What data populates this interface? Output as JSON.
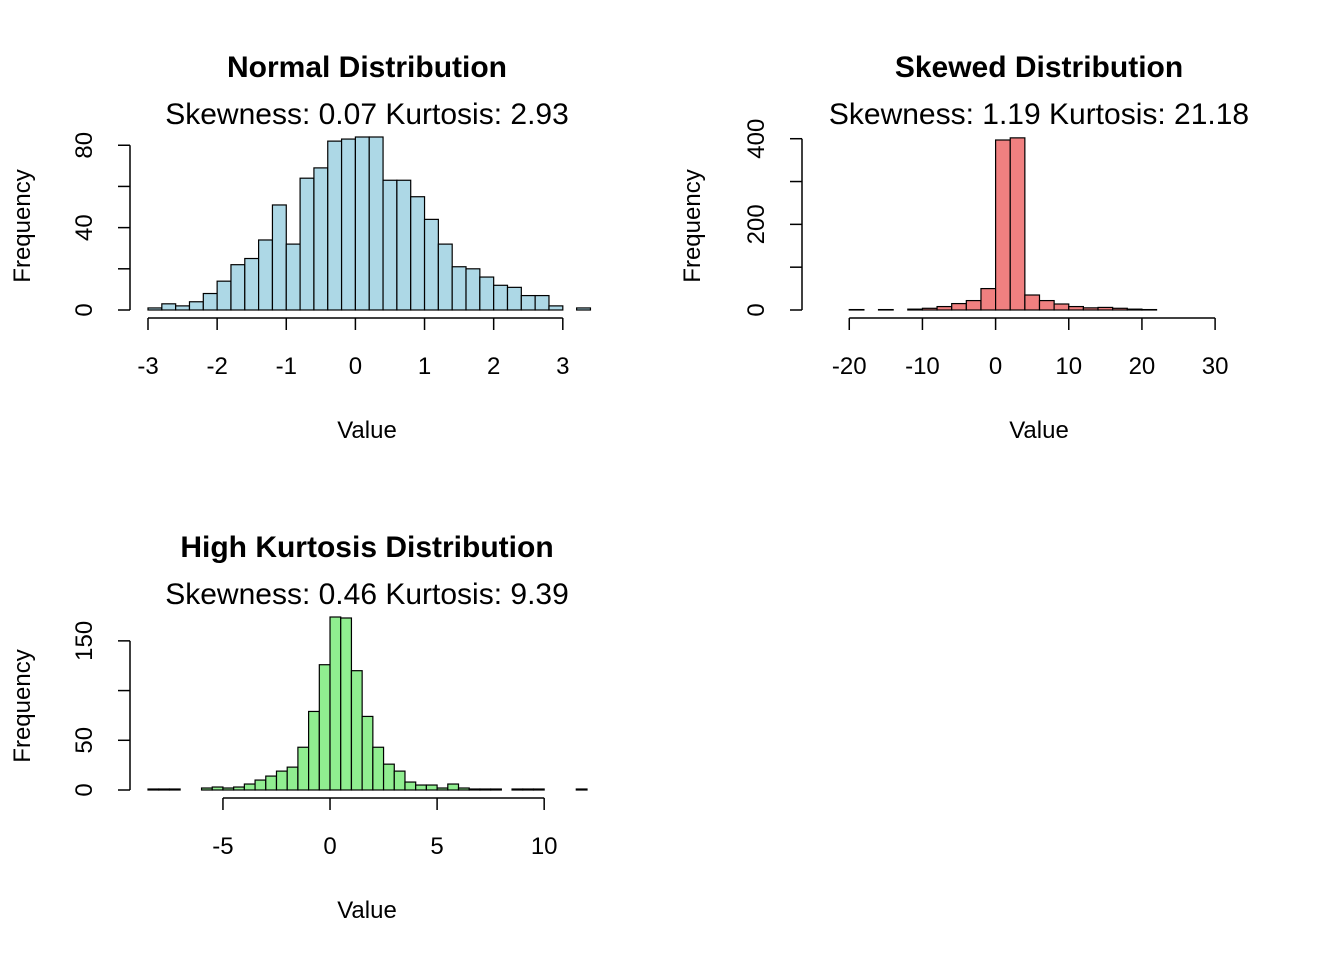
{
  "chart_data": [
    {
      "type": "bar",
      "title": "Normal Distribution",
      "subtitle": "Skewness: 0.07 Kurtosis: 2.93",
      "xlabel": "Value",
      "ylabel": "Frequency",
      "fill": "#ADD8E6",
      "xlim": [
        -3.0,
        3.35
      ],
      "ylim": [
        0,
        84
      ],
      "x_ticks": [
        -3,
        -2,
        -1,
        0,
        1,
        2,
        3
      ],
      "x_tick_labels": [
        "-3",
        "-2",
        "-1",
        "0",
        "1",
        "2",
        "3"
      ],
      "y_ticks": [
        0,
        20,
        40,
        60,
        80
      ],
      "y_tick_labels": [
        "0",
        "",
        "40",
        "",
        "80"
      ],
      "bins": [
        {
          "x0": -3.0,
          "x1": -2.8,
          "count": 1
        },
        {
          "x0": -2.8,
          "x1": -2.6,
          "count": 3
        },
        {
          "x0": -2.6,
          "x1": -2.4,
          "count": 2
        },
        {
          "x0": -2.4,
          "x1": -2.2,
          "count": 4
        },
        {
          "x0": -2.2,
          "x1": -2.0,
          "count": 8
        },
        {
          "x0": -2.0,
          "x1": -1.8,
          "count": 14
        },
        {
          "x0": -1.8,
          "x1": -1.6,
          "count": 22
        },
        {
          "x0": -1.6,
          "x1": -1.4,
          "count": 25
        },
        {
          "x0": -1.4,
          "x1": -1.2,
          "count": 34
        },
        {
          "x0": -1.2,
          "x1": -1.0,
          "count": 51
        },
        {
          "x0": -1.0,
          "x1": -0.8,
          "count": 32
        },
        {
          "x0": -0.8,
          "x1": -0.6,
          "count": 64
        },
        {
          "x0": -0.6,
          "x1": -0.4,
          "count": 69
        },
        {
          "x0": -0.4,
          "x1": -0.2,
          "count": 82
        },
        {
          "x0": -0.2,
          "x1": 0.0,
          "count": 83
        },
        {
          "x0": 0.0,
          "x1": 0.2,
          "count": 84
        },
        {
          "x0": 0.2,
          "x1": 0.4,
          "count": 84
        },
        {
          "x0": 0.4,
          "x1": 0.6,
          "count": 63
        },
        {
          "x0": 0.6,
          "x1": 0.8,
          "count": 63
        },
        {
          "x0": 0.8,
          "x1": 1.0,
          "count": 55
        },
        {
          "x0": 1.0,
          "x1": 1.2,
          "count": 44
        },
        {
          "x0": 1.2,
          "x1": 1.4,
          "count": 32
        },
        {
          "x0": 1.4,
          "x1": 1.6,
          "count": 21
        },
        {
          "x0": 1.6,
          "x1": 1.8,
          "count": 20
        },
        {
          "x0": 1.8,
          "x1": 2.0,
          "count": 16
        },
        {
          "x0": 2.0,
          "x1": 2.2,
          "count": 12
        },
        {
          "x0": 2.2,
          "x1": 2.4,
          "count": 11
        },
        {
          "x0": 2.4,
          "x1": 2.6,
          "count": 7
        },
        {
          "x0": 2.6,
          "x1": 2.8,
          "count": 7
        },
        {
          "x0": 2.8,
          "x1": 3.0,
          "count": 2
        },
        {
          "x0": 3.0,
          "x1": 3.2,
          "count": 0
        },
        {
          "x0": 3.2,
          "x1": 3.4,
          "count": 1
        }
      ]
    },
    {
      "type": "bar",
      "title": "Skewed Distribution",
      "subtitle": "Skewness: 1.19 Kurtosis: 21.18",
      "xlabel": "Value",
      "ylabel": "Frequency",
      "fill": "#F08080",
      "xlim": [
        -24,
        36
      ],
      "ylim": [
        0,
        404
      ],
      "x_ticks": [
        -20,
        -10,
        0,
        10,
        20,
        30
      ],
      "x_tick_labels": [
        "-20",
        "-10",
        "0",
        "10",
        "20",
        "30"
      ],
      "y_ticks": [
        0,
        100,
        200,
        300,
        400
      ],
      "y_tick_labels": [
        "0",
        "",
        "200",
        "",
        "400"
      ],
      "bins": [
        {
          "x0": -24,
          "x1": -22,
          "count": 0
        },
        {
          "x0": -22,
          "x1": -20,
          "count": 0
        },
        {
          "x0": -20,
          "x1": -18,
          "count": 1
        },
        {
          "x0": -18,
          "x1": -16,
          "count": 0
        },
        {
          "x0": -16,
          "x1": -14,
          "count": 1
        },
        {
          "x0": -14,
          "x1": -12,
          "count": 0
        },
        {
          "x0": -12,
          "x1": -10,
          "count": 2
        },
        {
          "x0": -10,
          "x1": -8,
          "count": 4
        },
        {
          "x0": -8,
          "x1": -6,
          "count": 8
        },
        {
          "x0": -6,
          "x1": -4,
          "count": 15
        },
        {
          "x0": -4,
          "x1": -2,
          "count": 22
        },
        {
          "x0": -2,
          "x1": 0,
          "count": 50
        },
        {
          "x0": 0,
          "x1": 2,
          "count": 397
        },
        {
          "x0": 2,
          "x1": 4,
          "count": 402
        },
        {
          "x0": 4,
          "x1": 6,
          "count": 35
        },
        {
          "x0": 6,
          "x1": 8,
          "count": 22
        },
        {
          "x0": 8,
          "x1": 10,
          "count": 14
        },
        {
          "x0": 10,
          "x1": 12,
          "count": 8
        },
        {
          "x0": 12,
          "x1": 14,
          "count": 5
        },
        {
          "x0": 14,
          "x1": 16,
          "count": 6
        },
        {
          "x0": 16,
          "x1": 18,
          "count": 4
        },
        {
          "x0": 18,
          "x1": 20,
          "count": 2
        },
        {
          "x0": 20,
          "x1": 22,
          "count": 1
        },
        {
          "x0": 22,
          "x1": 24,
          "count": 0
        },
        {
          "x0": 24,
          "x1": 26,
          "count": 0
        },
        {
          "x0": 26,
          "x1": 28,
          "count": 0
        },
        {
          "x0": 28,
          "x1": 30,
          "count": 0
        },
        {
          "x0": 30,
          "x1": 32,
          "count": 0
        },
        {
          "x0": 32,
          "x1": 34,
          "count": 0
        },
        {
          "x0": 34,
          "x1": 36,
          "count": 0
        }
      ]
    },
    {
      "type": "bar",
      "title": "High Kurtosis Distribution",
      "subtitle": "Skewness: 0.46 Kurtosis: 9.39",
      "xlabel": "Value",
      "ylabel": "Frequency",
      "fill": "#90EE90",
      "xlim": [
        -8.5,
        12.0
      ],
      "ylim": [
        0,
        174
      ],
      "x_ticks": [
        -5,
        0,
        5,
        10
      ],
      "x_tick_labels": [
        "-5",
        "0",
        "5",
        "10"
      ],
      "y_ticks": [
        0,
        50,
        100,
        150
      ],
      "y_tick_labels": [
        "0",
        "50",
        "",
        "150"
      ],
      "bins": [
        {
          "x0": -8.5,
          "x1": -8.0,
          "count": 1
        },
        {
          "x0": -8.0,
          "x1": -7.5,
          "count": 1
        },
        {
          "x0": -7.5,
          "x1": -7.0,
          "count": 1
        },
        {
          "x0": -7.0,
          "x1": -6.5,
          "count": 0
        },
        {
          "x0": -6.5,
          "x1": -6.0,
          "count": 0
        },
        {
          "x0": -6.0,
          "x1": -5.5,
          "count": 2
        },
        {
          "x0": -5.5,
          "x1": -5.0,
          "count": 3
        },
        {
          "x0": -5.0,
          "x1": -4.5,
          "count": 2
        },
        {
          "x0": -4.5,
          "x1": -4.0,
          "count": 3
        },
        {
          "x0": -4.0,
          "x1": -3.5,
          "count": 6
        },
        {
          "x0": -3.5,
          "x1": -3.0,
          "count": 10
        },
        {
          "x0": -3.0,
          "x1": -2.5,
          "count": 14
        },
        {
          "x0": -2.5,
          "x1": -2.0,
          "count": 19
        },
        {
          "x0": -2.0,
          "x1": -1.5,
          "count": 23
        },
        {
          "x0": -1.5,
          "x1": -1.0,
          "count": 43
        },
        {
          "x0": -1.0,
          "x1": -0.5,
          "count": 79
        },
        {
          "x0": -0.5,
          "x1": 0.0,
          "count": 126
        },
        {
          "x0": 0.0,
          "x1": 0.5,
          "count": 174
        },
        {
          "x0": 0.5,
          "x1": 1.0,
          "count": 173
        },
        {
          "x0": 1.0,
          "x1": 1.5,
          "count": 120
        },
        {
          "x0": 1.5,
          "x1": 2.0,
          "count": 74
        },
        {
          "x0": 2.0,
          "x1": 2.5,
          "count": 43
        },
        {
          "x0": 2.5,
          "x1": 3.0,
          "count": 26
        },
        {
          "x0": 3.0,
          "x1": 3.5,
          "count": 19
        },
        {
          "x0": 3.5,
          "x1": 4.0,
          "count": 8
        },
        {
          "x0": 4.0,
          "x1": 4.5,
          "count": 5
        },
        {
          "x0": 4.5,
          "x1": 5.0,
          "count": 5
        },
        {
          "x0": 5.0,
          "x1": 5.5,
          "count": 2
        },
        {
          "x0": 5.5,
          "x1": 6.0,
          "count": 6
        },
        {
          "x0": 6.0,
          "x1": 6.5,
          "count": 2
        },
        {
          "x0": 6.5,
          "x1": 7.0,
          "count": 1
        },
        {
          "x0": 7.0,
          "x1": 7.5,
          "count": 1
        },
        {
          "x0": 7.5,
          "x1": 8.0,
          "count": 1
        },
        {
          "x0": 8.0,
          "x1": 8.5,
          "count": 0
        },
        {
          "x0": 8.5,
          "x1": 9.0,
          "count": 1
        },
        {
          "x0": 9.0,
          "x1": 9.5,
          "count": 1
        },
        {
          "x0": 9.5,
          "x1": 10.0,
          "count": 1
        },
        {
          "x0": 10.0,
          "x1": 10.5,
          "count": 0
        },
        {
          "x0": 10.5,
          "x1": 11.0,
          "count": 0
        },
        {
          "x0": 11.0,
          "x1": 11.5,
          "count": 0
        },
        {
          "x0": 11.5,
          "x1": 12.0,
          "count": 1
        }
      ]
    }
  ]
}
